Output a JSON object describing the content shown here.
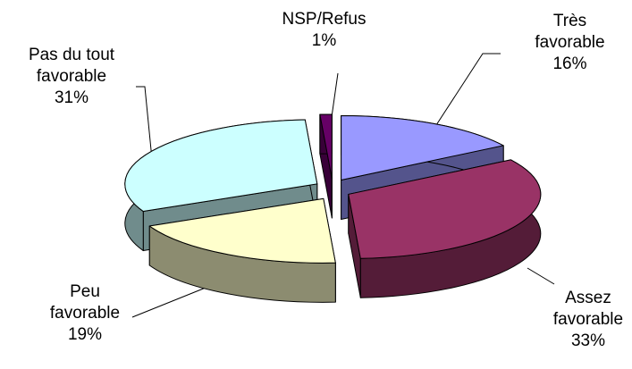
{
  "chart_data": {
    "type": "pie",
    "categories": [
      "Très favorable",
      "Assez favorable",
      "Peu favorable",
      "Pas du tout favorable",
      "NSP/Refus"
    ],
    "values": [
      16,
      33,
      19,
      31,
      1
    ],
    "value_labels": [
      "16%",
      "33%",
      "19%",
      "31%",
      "1%"
    ],
    "colors": [
      "#9999ff",
      "#993366",
      "#ffffcc",
      "#ccffff",
      "#660066"
    ]
  }
}
